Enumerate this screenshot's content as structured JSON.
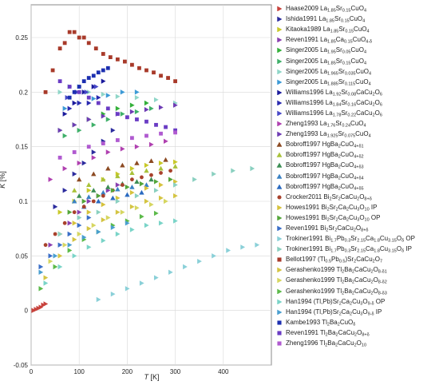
{
  "chart_data": {
    "type": "scatter",
    "xlabel": "T [K]",
    "ylabel": "K [%]",
    "xlim": [
      0,
      500
    ],
    "ylim": [
      -0.05,
      0.28
    ],
    "x_ticks": [
      "0",
      "100",
      "200",
      "300",
      "400"
    ],
    "y_ticks": [
      "-0.05",
      "0",
      "0.05",
      "0.1",
      "0.15",
      "0.2",
      "0.25"
    ],
    "grid": true,
    "legend_position": "right",
    "series": [
      {
        "name": "Haase2009 La_{1.85}Sr_{0.15}CuO_{4}",
        "color": "#c8423c",
        "marker": "triangle-right",
        "x": [
          5,
          10,
          15,
          20,
          25,
          30
        ],
        "y": [
          0.0,
          0.001,
          0.002,
          0.003,
          0.005,
          0.006
        ]
      },
      {
        "name": "Ishida1991 La_{1.85}Sr_{0.15}CuO_{4}",
        "color": "#2c2c9e",
        "marker": "triangle-right",
        "x": [
          50,
          70,
          90,
          110,
          130,
          150,
          170
        ],
        "y": [
          0.095,
          0.11,
          0.125,
          0.135,
          0.145,
          0.155,
          0.165
        ]
      },
      {
        "name": "Kitaoka1989 La_{1.85}Sr_{0.15}CuO_{4}",
        "color": "#c9c92a",
        "marker": "triangle-right",
        "x": [
          60,
          90,
          120,
          150,
          180,
          210,
          240,
          270,
          300
        ],
        "y": [
          0.09,
          0.1,
          0.11,
          0.12,
          0.125,
          0.13,
          0.133,
          0.135,
          0.136
        ]
      },
      {
        "name": "Reven1991 La_{1.85}Ca_{0.15}CuO_{4-δ}",
        "color": "#8a3fb0",
        "marker": "triangle-right",
        "x": [
          40,
          60,
          80,
          100,
          120,
          140,
          160,
          180
        ],
        "y": [
          0.06,
          0.07,
          0.08,
          0.09,
          0.1,
          0.105,
          0.11,
          0.115
        ]
      },
      {
        "name": "Singer2005 La_{1.95}Sr_{0.05}CuO_{4}",
        "color": "#34b03a",
        "marker": "triangle-right",
        "x": [
          60,
          90,
          120,
          150,
          180,
          210,
          240
        ],
        "y": [
          0.165,
          0.17,
          0.175,
          0.18,
          0.185,
          0.188,
          0.19
        ]
      },
      {
        "name": "Singer2005 La_{1.85}Sr_{0.15}CuO_{4}",
        "color": "#3fb069",
        "marker": "triangle-right",
        "x": [
          70,
          100,
          130,
          160,
          190,
          220,
          250
        ],
        "y": [
          0.16,
          0.165,
          0.17,
          0.175,
          0.18,
          0.182,
          0.185
        ]
      },
      {
        "name": "Singer2005 La_{1.965}Sr_{0.035}CuO_{4}",
        "color": "#8fd6c8",
        "marker": "triangle-right",
        "x": [
          60,
          80,
          100,
          120,
          150,
          180,
          220,
          260,
          300
        ],
        "y": [
          0.2,
          0.205,
          0.205,
          0.2,
          0.198,
          0.196,
          0.195,
          0.193,
          0.19
        ]
      },
      {
        "name": "Singer2005 La_{1.885}Sr_{0.115}CuO_{4}",
        "color": "#3c9ad6",
        "marker": "triangle-right",
        "x": [
          70,
          100,
          130,
          160,
          190,
          220
        ],
        "y": [
          0.185,
          0.19,
          0.194,
          0.197,
          0.2,
          0.2
        ]
      },
      {
        "name": "Williams1996 La_{1.92}Sr_{0.08}CaCu_{2}O_{6}",
        "color": "#1a1a9c",
        "marker": "triangle-right",
        "x": [
          70,
          90,
          110,
          130,
          150
        ],
        "y": [
          0.18,
          0.19,
          0.2,
          0.205,
          0.21
        ]
      },
      {
        "name": "Williams1996 La_{1.84}Sr_{0.16}CaCu_{2}O_{6}",
        "color": "#2a2ab0",
        "marker": "triangle-right",
        "x": [
          80,
          100,
          120,
          140
        ],
        "y": [
          0.185,
          0.19,
          0.19,
          0.195
        ]
      },
      {
        "name": "Williams1996 La_{1.78}Sr_{0.22}CaCu_{2}O_{6}",
        "color": "#4848c8",
        "marker": "triangle-right",
        "x": [
          75,
          95,
          115,
          135
        ],
        "y": [
          0.195,
          0.2,
          0.2,
          0.205
        ]
      },
      {
        "name": "Zheng1993 La_{1.76}Sr_{0.24}CuO_{4}",
        "color": "#b040b0",
        "marker": "triangle-right",
        "x": [
          40,
          70,
          100,
          130,
          160,
          190,
          220,
          250,
          280
        ],
        "y": [
          0.12,
          0.13,
          0.135,
          0.14,
          0.145,
          0.148,
          0.15,
          0.152,
          0.155
        ]
      },
      {
        "name": "Zheng1993 La_{1.925}Sr_{0.075}CuO_{4}",
        "color": "#6e3cb4",
        "marker": "triangle-right",
        "x": [
          60,
          90,
          120,
          150,
          180,
          210,
          240,
          270,
          300
        ],
        "y": [
          0.165,
          0.17,
          0.175,
          0.178,
          0.18,
          0.182,
          0.184,
          0.186,
          0.188
        ]
      },
      {
        "name": "Bobroff1997 HgBa_{2}CuO_{4+δ1}",
        "color": "#8c4a22",
        "marker": "triangle-up",
        "x": [
          100,
          130,
          160,
          190,
          220,
          250,
          280
        ],
        "y": [
          0.12,
          0.125,
          0.13,
          0.133,
          0.135,
          0.137,
          0.138
        ]
      },
      {
        "name": "Bobroff1997 HgBa_{2}CuO_{4+δ2}",
        "color": "#a9c23a",
        "marker": "triangle-up",
        "x": [
          90,
          120,
          150,
          180,
          210,
          240,
          270,
          300
        ],
        "y": [
          0.11,
          0.115,
          0.12,
          0.123,
          0.126,
          0.128,
          0.13,
          0.132
        ]
      },
      {
        "name": "Bobroff1997 HgBa_{2}CuO_{4+δ3}",
        "color": "#3c8e54",
        "marker": "triangle-up",
        "x": [
          100,
          130,
          160,
          190,
          220,
          250
        ],
        "y": [
          0.105,
          0.11,
          0.113,
          0.116,
          0.118,
          0.12
        ]
      },
      {
        "name": "Bobroff1997 HgBa_{2}CuO_{4+δ4}",
        "color": "#3a82c4",
        "marker": "triangle-up",
        "x": [
          90,
          120,
          150,
          180,
          210,
          240
        ],
        "y": [
          0.1,
          0.104,
          0.108,
          0.111,
          0.113,
          0.115
        ]
      },
      {
        "name": "Bobroff1997 HgBa_{2}CuO_{4+δ5}",
        "color": "#2a6ac0",
        "marker": "triangle-up",
        "x": [
          110,
          140,
          170,
          200,
          230
        ],
        "y": [
          0.095,
          0.1,
          0.103,
          0.106,
          0.108
        ]
      },
      {
        "name": "Crocker2011 Bi_{2}Sr_{2}CaCu_{2}O_{8+δ}",
        "color": "#a8422c",
        "marker": "circle",
        "x": [
          30,
          50,
          70,
          90,
          110,
          130,
          150,
          170,
          190,
          210,
          230,
          250,
          270,
          290
        ],
        "y": [
          0.06,
          0.07,
          0.08,
          0.09,
          0.095,
          0.1,
          0.105,
          0.11,
          0.115,
          0.12,
          0.122,
          0.124,
          0.126,
          0.128
        ]
      },
      {
        "name": "Howes1991 Bi_{2}Sr_{2}Ca_{2}Cu_{3}O_{10} IP",
        "color": "#d6c23c",
        "marker": "triangle-right",
        "x": [
          60,
          90,
          120,
          150,
          180,
          210,
          240,
          270,
          300
        ],
        "y": [
          0.07,
          0.08,
          0.09,
          0.097,
          0.103,
          0.108,
          0.112,
          0.115,
          0.118
        ]
      },
      {
        "name": "Howes1991 Bi_{2}Sr_{2}Ca_{2}Cu_{3}O_{10} OP",
        "color": "#54a63a",
        "marker": "triangle-right",
        "x": [
          80,
          110,
          140,
          170,
          200,
          230,
          260,
          290
        ],
        "y": [
          0.09,
          0.1,
          0.105,
          0.11,
          0.113,
          0.116,
          0.118,
          0.12
        ]
      },
      {
        "name": "Reven1991 Bi_{2}Sr_{2}CaCu_{2}O_{8+δ}",
        "color": "#3a6ec8",
        "marker": "triangle-right",
        "x": [
          20,
          40,
          60,
          80,
          100,
          120
        ],
        "y": [
          0.04,
          0.05,
          0.06,
          0.07,
          0.078,
          0.085
        ]
      },
      {
        "name": "Trokiner1991 Bi_{1.7}Pb_{0.3}Sr_{2.15}Ca_{1.8}Cu_{3.15}O_{δ} OP",
        "color": "#8ad0d8",
        "marker": "triangle-right",
        "x": [
          140,
          170,
          200,
          230,
          260,
          290,
          320,
          350,
          380,
          410,
          440,
          470
        ],
        "y": [
          0.01,
          0.015,
          0.02,
          0.025,
          0.03,
          0.035,
          0.04,
          0.045,
          0.05,
          0.055,
          0.058,
          0.06
        ]
      },
      {
        "name": "Trokiner1991 Bi_{1.7}Pb_{0.3}Sr_{2.15}Ca_{1.8}Cu_{3.15}O_{δ} IP",
        "color": "#8ad0c0",
        "marker": "triangle-right",
        "x": [
          60,
          100,
          140,
          180,
          220,
          260,
          300,
          340,
          380,
          420,
          460
        ],
        "y": [
          0.07,
          0.085,
          0.09,
          0.1,
          0.105,
          0.11,
          0.115,
          0.12,
          0.125,
          0.128,
          0.13
        ]
      },
      {
        "name": "Bellot1997 (Tl_{0.5}Pb_{0.5})Sr_{2}CaCu_{2}O_{7}",
        "color": "#a83a2a",
        "marker": "square",
        "x": [
          30,
          45,
          60,
          70,
          80,
          90,
          100,
          110,
          120,
          135,
          150,
          165,
          180,
          195,
          210,
          225,
          240,
          255,
          270,
          285,
          300
        ],
        "y": [
          0.2,
          0.22,
          0.24,
          0.245,
          0.255,
          0.255,
          0.25,
          0.25,
          0.245,
          0.24,
          0.235,
          0.232,
          0.23,
          0.228,
          0.225,
          0.222,
          0.22,
          0.218,
          0.215,
          0.213,
          0.21
        ]
      },
      {
        "name": "Gerashenko1999 Tl_{2}Ba_{2}CaCu_{2}O_{8-δ1}",
        "color": "#d4c442",
        "marker": "triangle-right",
        "x": [
          30,
          60,
          90,
          120,
          150,
          180,
          210,
          240,
          270,
          300
        ],
        "y": [
          0.03,
          0.05,
          0.065,
          0.075,
          0.083,
          0.09,
          0.095,
          0.1,
          0.103,
          0.105
        ]
      },
      {
        "name": "Gerashenko1999 Tl_{2}Ba_{2}CaCu_{2}O_{8-δ2}",
        "color": "#d6d660",
        "marker": "triangle-right",
        "x": [
          40,
          70,
          100,
          130,
          160,
          190,
          220,
          250,
          280
        ],
        "y": [
          0.045,
          0.06,
          0.07,
          0.078,
          0.085,
          0.09,
          0.094,
          0.097,
          0.1
        ]
      },
      {
        "name": "Gerashenko1999 Tl_{2}Ba_{2}CaCu_{2}O_{8-δ3}",
        "color": "#5cba4a",
        "marker": "triangle-right",
        "x": [
          20,
          50,
          80,
          110,
          140,
          170,
          200,
          230,
          260
        ],
        "y": [
          0.02,
          0.04,
          0.055,
          0.065,
          0.072,
          0.078,
          0.082,
          0.086,
          0.089
        ]
      },
      {
        "name": "Han1994 (Tl,Pb)Sr_{2}Ca_{2}Cu_{3}O_{9-δ} OP",
        "color": "#7ad4c8",
        "marker": "triangle-right",
        "x": [
          30,
          60,
          90,
          120,
          150,
          180,
          210,
          240,
          270,
          300
        ],
        "y": [
          0.025,
          0.04,
          0.05,
          0.058,
          0.064,
          0.07,
          0.074,
          0.078,
          0.08,
          0.082
        ]
      },
      {
        "name": "Han1994 (Tl,Pb)Sr_{2}Ca_{2}Cu_{3}O_{9-δ} IP",
        "color": "#4a9fd0",
        "marker": "triangle-right",
        "x": [
          20,
          50,
          80,
          110,
          140,
          170,
          200
        ],
        "y": [
          0.035,
          0.05,
          0.06,
          0.067,
          0.072,
          0.076,
          0.08
        ]
      },
      {
        "name": "Kambe1993 Tl_{2}Ba_{2}CuO_{δ}",
        "color": "#1c2fb0",
        "marker": "square",
        "x": [
          80,
          90,
          100,
          110,
          120,
          130,
          140,
          150,
          160
        ],
        "y": [
          0.195,
          0.2,
          0.205,
          0.21,
          0.213,
          0.215,
          0.218,
          0.22,
          0.222
        ]
      },
      {
        "name": "Reven1991 Tl_{2}Ba_{2}CaCu_{2}O_{8+δ}",
        "color": "#6a3cc4",
        "marker": "square",
        "x": [
          60,
          80,
          100,
          120,
          140,
          160,
          180,
          200,
          220,
          240,
          260,
          280,
          300
        ],
        "y": [
          0.21,
          0.205,
          0.2,
          0.195,
          0.19,
          0.185,
          0.18,
          0.177,
          0.175,
          0.173,
          0.17,
          0.168,
          0.165
        ]
      },
      {
        "name": "Zheng1996 Tl_{2}Ba_{2}CaCu_{2}O_{10}",
        "color": "#b05ad0",
        "marker": "square",
        "x": [
          60,
          90,
          120,
          150,
          180,
          210,
          240,
          270,
          300
        ],
        "y": [
          0.14,
          0.145,
          0.15,
          0.153,
          0.156,
          0.158,
          0.16,
          0.162,
          0.163
        ]
      }
    ]
  }
}
